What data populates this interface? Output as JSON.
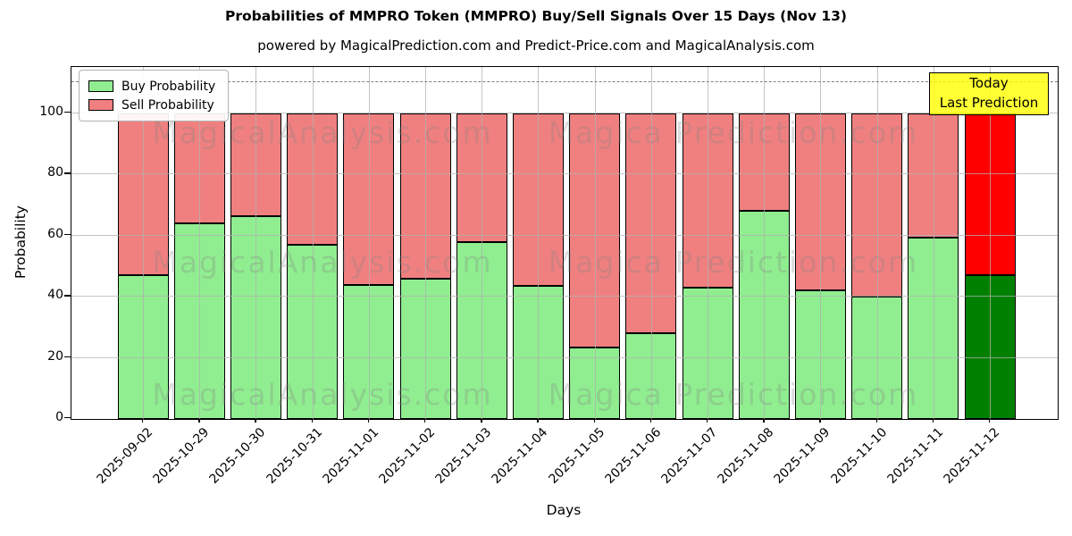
{
  "title": "Probabilities of MMPRO Token (MMPRO) Buy/Sell Signals Over 15 Days (Nov 13)",
  "subtitle": "powered by MagicalPrediction.com and Predict-Price.com and MagicalAnalysis.com",
  "legend": {
    "buy_label": "Buy Probability",
    "sell_label": "Sell Probability"
  },
  "annotation_box": {
    "line1": "Today",
    "line2": "Last Prediction"
  },
  "watermarks": {
    "left_text": "MagicalAnalysis.com",
    "right_text": "Magica Prediction.com"
  },
  "colors": {
    "buy": "#90ee90",
    "sell": "#f08080",
    "today_buy": "#008000",
    "today_sell": "#ff0000",
    "annotation_bg": "#ffff00",
    "grid": "#b0b0b0",
    "dashed_line": "#7f7f7f",
    "watermark": "rgba(128,128,128,0.28)"
  },
  "chart_data": {
    "type": "bar",
    "stacked": true,
    "title": "Probabilities of MMPRO Token (MMPRO) Buy/Sell Signals Over 15 Days (Nov 13)",
    "subtitle": "powered by MagicalPrediction.com and Predict-Price.com and MagicalAnalysis.com",
    "xlabel": "Days",
    "ylabel": "Probability",
    "ylim": [
      0,
      115
    ],
    "yticks": [
      0,
      20,
      40,
      60,
      80,
      100
    ],
    "grid": true,
    "legend_position": "upper left",
    "dashed_line_y": 110.5,
    "today_index": 15,
    "categories": [
      "2025-09-02",
      "2025-10-29",
      "2025-10-30",
      "2025-10-31",
      "2025-11-01",
      "2025-11-02",
      "2025-11-03",
      "2025-11-04",
      "2025-11-05",
      "2025-11-06",
      "2025-11-07",
      "2025-11-08",
      "2025-11-09",
      "2025-11-10",
      "2025-11-11",
      "2025-11-12"
    ],
    "series": [
      {
        "name": "Buy Probability",
        "values": [
          47,
          64,
          66.5,
          57,
          44,
          46,
          58,
          43.5,
          23.5,
          28,
          43,
          68,
          42,
          40,
          59.5,
          47
        ]
      },
      {
        "name": "Sell Probability",
        "values": [
          53,
          36,
          33.5,
          43,
          56,
          54,
          42,
          56.5,
          76.5,
          72,
          57,
          32,
          58,
          60,
          40.5,
          53
        ]
      }
    ]
  }
}
